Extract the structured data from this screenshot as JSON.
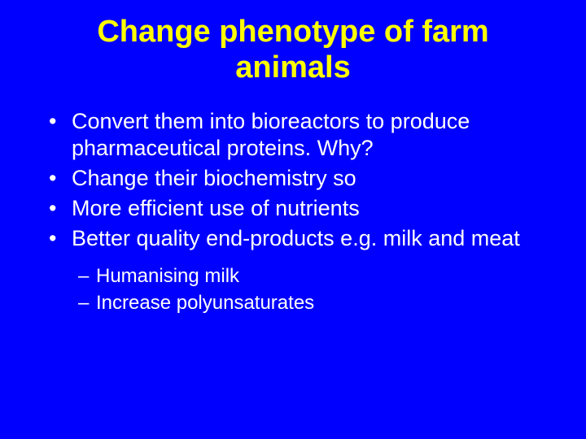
{
  "slide": {
    "background_color": "#0000fe",
    "title": {
      "text": "Change phenotype of farm animals",
      "color": "#ffff00",
      "font_size_pt": 38,
      "font_weight": "bold",
      "align": "center"
    },
    "body": {
      "color": "#ffffff",
      "font_size_pt": 27,
      "bullet_char": "•",
      "items": [
        {
          "text": "Convert them into bioreactors to produce pharmaceutical proteins. Why?"
        },
        {
          "text": "Change their biochemistry so"
        },
        {
          "text": "More efficient use of nutrients"
        },
        {
          "text": "Better quality end-products e.g. milk and meat"
        }
      ]
    },
    "sub": {
      "color": "#ffffff",
      "font_size_pt": 24,
      "bullet_char": "–",
      "items": [
        {
          "text": "Humanising milk"
        },
        {
          "text": "Increase polyunsaturates"
        }
      ]
    }
  }
}
